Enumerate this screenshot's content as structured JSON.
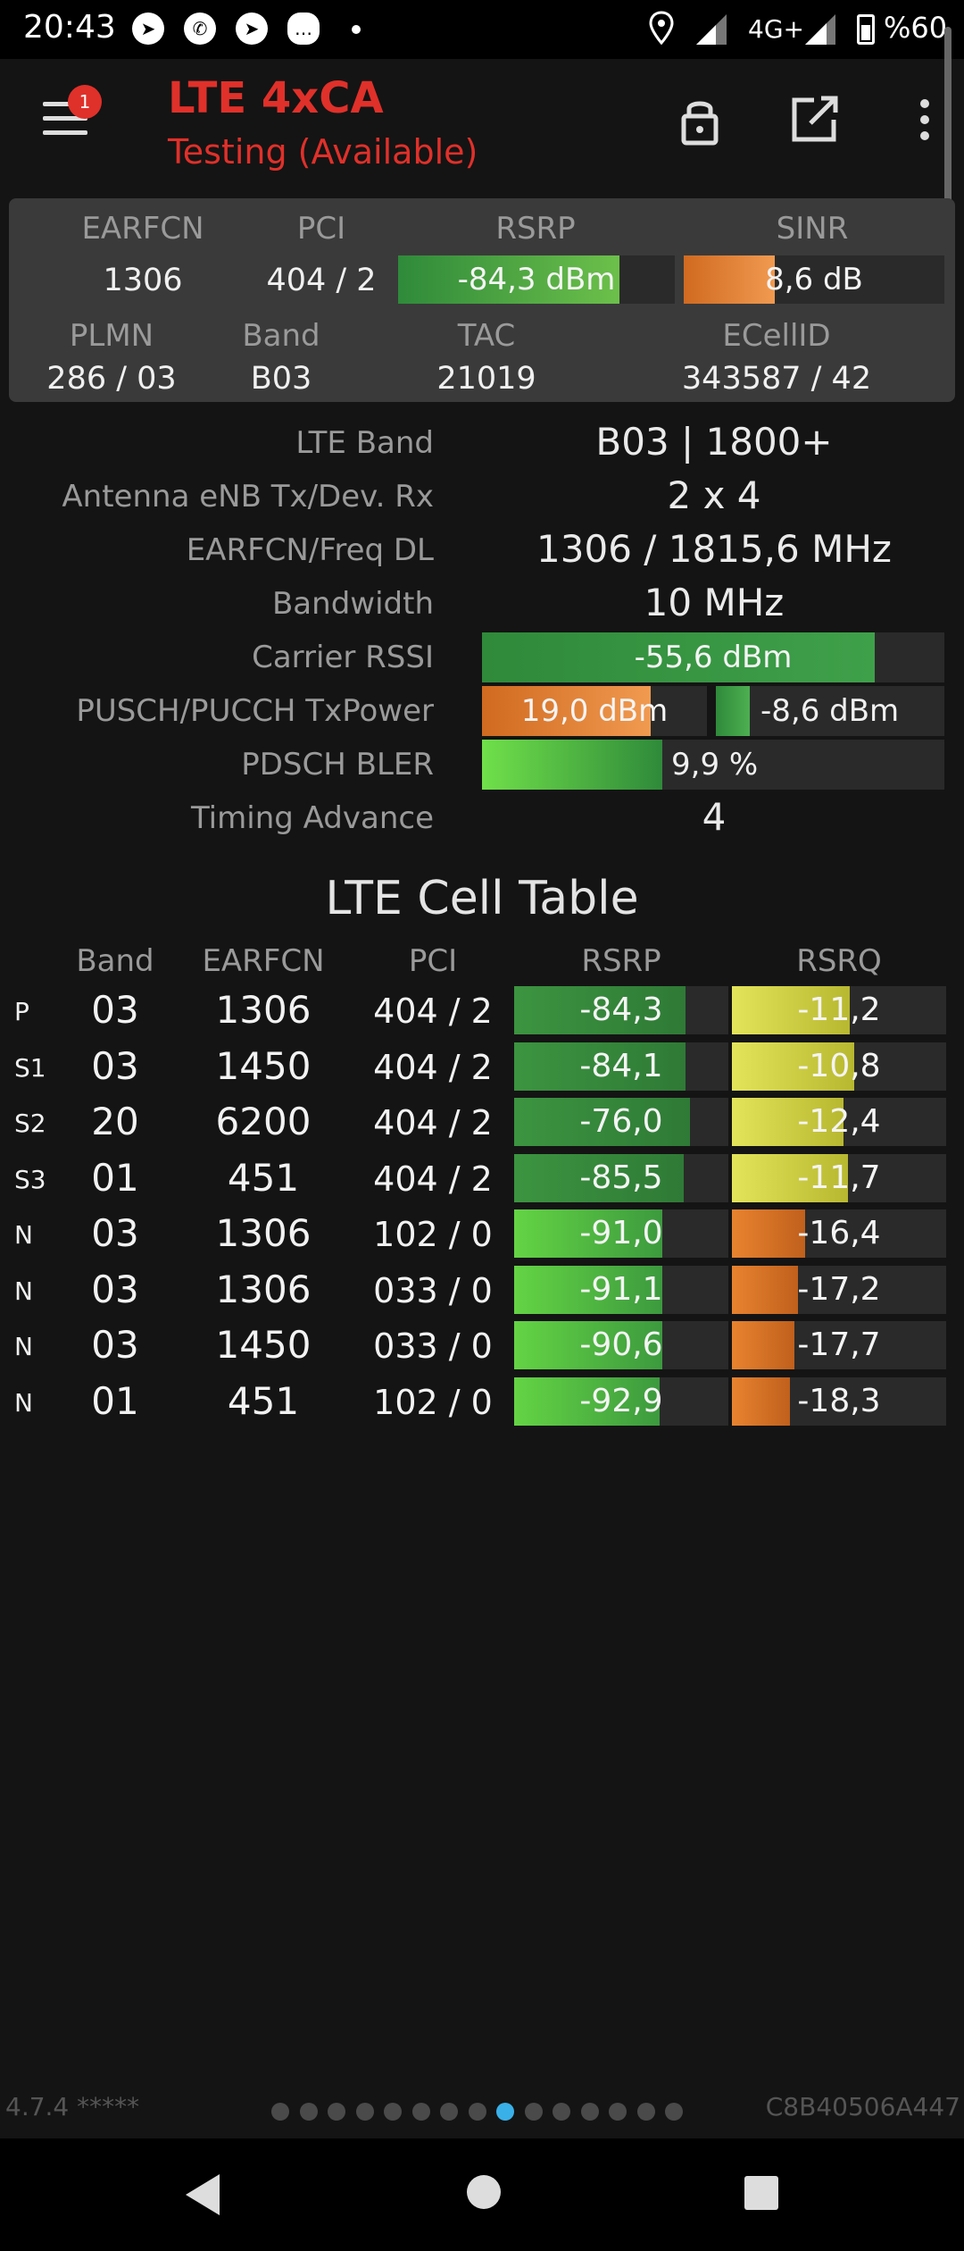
{
  "status_bar": {
    "time": "20:43",
    "icons": [
      "telegram-icon",
      "whatsapp-icon",
      "telegram-icon",
      "chat-bubble-icon",
      "dot-icon"
    ],
    "network": "4G+",
    "battery": "%60"
  },
  "header": {
    "badge": "1",
    "title": "LTE 4xCA",
    "subtitle": "Testing (Available)"
  },
  "summary": {
    "labels": {
      "earfcn": "EARFCN",
      "pci": "PCI",
      "rsrp": "RSRP",
      "sinr": "SINR",
      "plmn": "PLMN",
      "band": "Band",
      "tac": "TAC",
      "ecellid": "ECellID"
    },
    "earfcn": "1306",
    "pci": "404 / 2",
    "rsrp": "-84,3 dBm",
    "rsrp_level": 0.8,
    "sinr": "8,6 dB",
    "sinr_level": 0.35,
    "plmn": "286 / 03",
    "band": "B03",
    "tac": "21019",
    "ecellid": "343587 / 42"
  },
  "details": {
    "lte_band_label": "LTE Band",
    "lte_band": "B03 | 1800+",
    "antenna_label": "Antenna eNB Tx/Dev. Rx",
    "antenna": "2 x 4",
    "earfcn_freq_label": "EARFCN/Freq DL",
    "earfcn_freq": "1306 / 1815,6 MHz",
    "bandwidth_label": "Bandwidth",
    "bandwidth": "10 MHz",
    "rssi_label": "Carrier RSSI",
    "rssi": "-55,6 dBm",
    "rssi_level": 0.85,
    "txpower_label": "PUSCH/PUCCH TxPower",
    "pusch": "19,0 dBm",
    "pusch_level": 0.75,
    "pucch": "-8,6 dBm",
    "pucch_level": 0.15,
    "bler_label": "PDSCH BLER",
    "bler": "9,9 %",
    "bler_level": 0.39,
    "ta_label": "Timing Advance",
    "ta": "4"
  },
  "cell_table": {
    "title": "LTE Cell Table",
    "headers": [
      "Band",
      "EARFCN",
      "PCI",
      "RSRP",
      "RSRQ"
    ],
    "rows": [
      {
        "type": "P",
        "band": "03",
        "earfcn": "1306",
        "pci": "404 / 2",
        "rsrp": "-84,3",
        "rsrp_level": 0.8,
        "rsrq": "-11,2",
        "rsrq_level": 0.55
      },
      {
        "type": "S1",
        "band": "03",
        "earfcn": "1450",
        "pci": "404 / 2",
        "rsrp": "-84,1",
        "rsrp_level": 0.8,
        "rsrq": "-10,8",
        "rsrq_level": 0.57
      },
      {
        "type": "S2",
        "band": "20",
        "earfcn": "6200",
        "pci": "404 / 2",
        "rsrp": "-76,0",
        "rsrp_level": 0.82,
        "rsrq": "-12,4",
        "rsrq_level": 0.52
      },
      {
        "type": "S3",
        "band": "01",
        "earfcn": "451",
        "pci": "404 / 2",
        "rsrp": "-85,5",
        "rsrp_level": 0.79,
        "rsrq": "-11,7",
        "rsrq_level": 0.54
      },
      {
        "type": "N",
        "band": "03",
        "earfcn": "1306",
        "pci": "102 / 0",
        "rsrp": "-91,0",
        "rsrp_level": 0.69,
        "rsrq": "-16,4",
        "rsrq_level": 0.34
      },
      {
        "type": "N",
        "band": "03",
        "earfcn": "1306",
        "pci": "033 / 0",
        "rsrp": "-91,1",
        "rsrp_level": 0.69,
        "rsrq": "-17,2",
        "rsrq_level": 0.31
      },
      {
        "type": "N",
        "band": "03",
        "earfcn": "1450",
        "pci": "033 / 0",
        "rsrp": "-90,6",
        "rsrp_level": 0.69,
        "rsrq": "-17,7",
        "rsrq_level": 0.29
      },
      {
        "type": "N",
        "band": "01",
        "earfcn": "451",
        "pci": "102 / 0",
        "rsrp": "-92,9",
        "rsrp_level": 0.68,
        "rsrq": "-18,3",
        "rsrq_level": 0.27
      }
    ]
  },
  "footer": {
    "version": "4.7.4 *****",
    "device_id": "C8B40506A447",
    "page_count": 15,
    "active_page": 8
  },
  "colors": {
    "accent_red": "#e0302a",
    "green": "#4caf50",
    "orange": "#e8832f",
    "yellow": "#d8d84a",
    "active_dot": "#3ab0e8"
  }
}
